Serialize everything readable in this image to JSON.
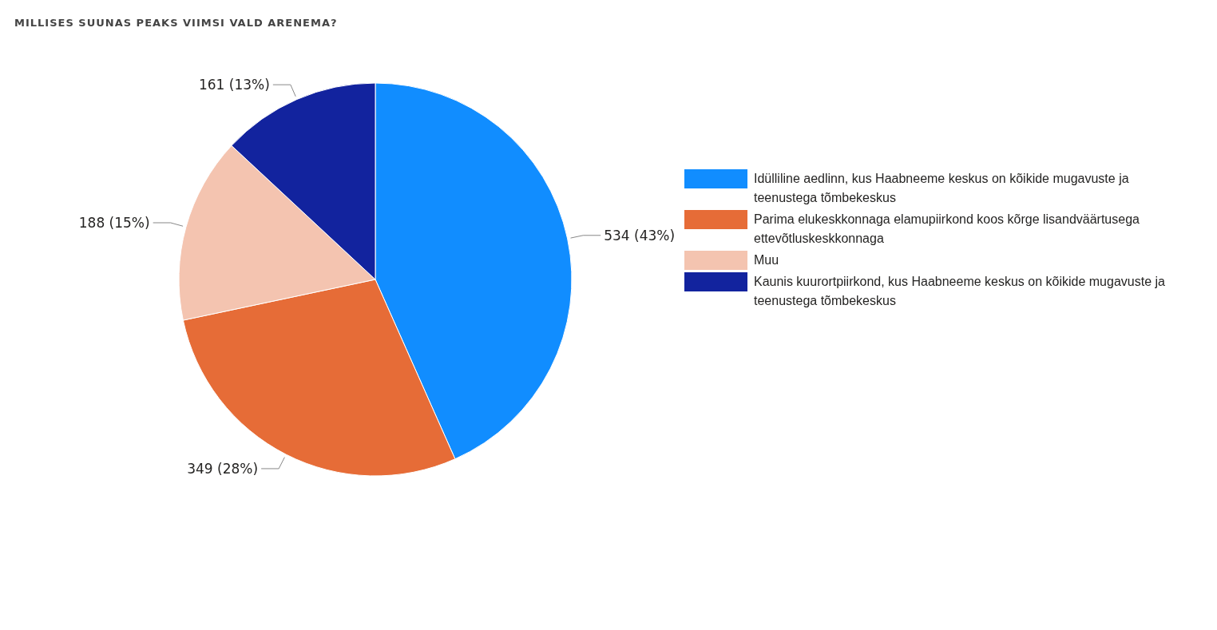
{
  "chart_data": {
    "type": "pie",
    "title": "MILLISES SUUNAS PEAKS VIIMSI VALD ARENEMA?",
    "categories": [
      "Idülliline aedlinn, kus Haabneeme keskus on kõikide mugavuste ja teenustega tõmbekeskus",
      "Parima elukeskkonnaga elamupiirkond koos kõrge lisandväärtusega ettevõtluskeskkonnaga",
      "Muu",
      "Kaunis kuurortpiirkond, kus Haabneeme keskus on kõikide mugavuste ja teenustega tõmbekeskus"
    ],
    "values": [
      534,
      349,
      188,
      161
    ],
    "colors": [
      "#118dff",
      "#e66c37",
      "#f4c4b0",
      "#12239e"
    ],
    "value_labels": [
      "534 (43%)",
      "349 (28%)",
      "188 (15%)",
      "161 (13%)"
    ],
    "legend": "right"
  }
}
